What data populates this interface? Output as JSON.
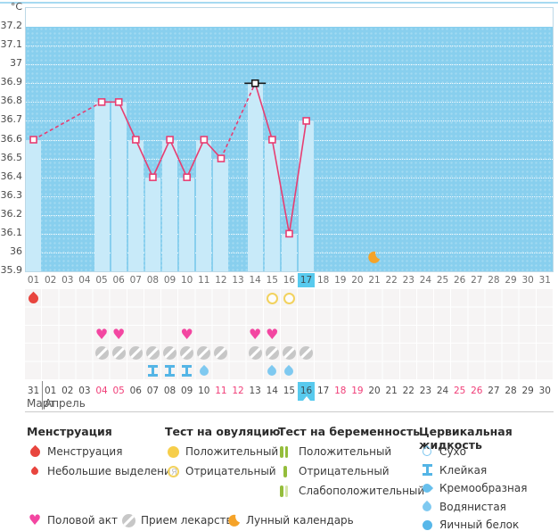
{
  "chart_data": {
    "type": "line",
    "units": "°C",
    "y_ticks": [
      "37.2",
      "37.1",
      "37",
      "36.9",
      "36.8",
      "36.7",
      "36.6",
      "36.5",
      "36.4",
      "36.3",
      "36.2",
      "36.1",
      "36",
      "35.9"
    ],
    "ylim": [
      35.9,
      37.3
    ],
    "x_days": [
      "01",
      "02",
      "03",
      "04",
      "05",
      "06",
      "07",
      "08",
      "09",
      "10",
      "11",
      "12",
      "13",
      "14",
      "15",
      "16",
      "17",
      "18",
      "19",
      "20",
      "21",
      "22",
      "23",
      "24",
      "25",
      "26",
      "27",
      "28",
      "29",
      "30",
      "31"
    ],
    "series": [
      {
        "name": "temperature",
        "points": [
          {
            "day": 1,
            "value": 36.6
          },
          {
            "day": 5,
            "value": 36.8
          },
          {
            "day": 6,
            "value": 36.8
          },
          {
            "day": 7,
            "value": 36.6
          },
          {
            "day": 8,
            "value": 36.4
          },
          {
            "day": 9,
            "value": 36.6
          },
          {
            "day": 10,
            "value": 36.4
          },
          {
            "day": 11,
            "value": 36.6
          },
          {
            "day": 12,
            "value": 36.5
          },
          {
            "day": 14,
            "value": 36.9
          },
          {
            "day": 15,
            "value": 36.6
          },
          {
            "day": 16,
            "value": 36.1
          },
          {
            "day": 17,
            "value": 36.7
          }
        ]
      }
    ],
    "ovulation_marker_day": 14,
    "moon_day": 21,
    "selected_cycle_day": 17,
    "grid": "dotted-horizontal",
    "legend_position": "bottom"
  },
  "events": {
    "rows": [
      {
        "name": "menstruation-and-ovulation-tests",
        "icons": [
          {
            "day": 1,
            "type": "menstruation"
          },
          {
            "day": 15,
            "type": "ovulation-negative"
          },
          {
            "day": 16,
            "type": "ovulation-negative"
          }
        ]
      },
      {
        "name": "pregnancy-tests",
        "icons": []
      },
      {
        "name": "intercourse",
        "icons": [
          {
            "day": 5,
            "type": "heart"
          },
          {
            "day": 6,
            "type": "heart"
          },
          {
            "day": 10,
            "type": "heart"
          },
          {
            "day": 14,
            "type": "heart"
          },
          {
            "day": 15,
            "type": "heart"
          }
        ]
      },
      {
        "name": "medications",
        "icons": [
          {
            "day": 5,
            "type": "pill"
          },
          {
            "day": 6,
            "type": "pill"
          },
          {
            "day": 7,
            "type": "pill"
          },
          {
            "day": 8,
            "type": "pill"
          },
          {
            "day": 9,
            "type": "pill"
          },
          {
            "day": 10,
            "type": "pill"
          },
          {
            "day": 11,
            "type": "pill"
          },
          {
            "day": 12,
            "type": "pill"
          },
          {
            "day": 14,
            "type": "pill"
          },
          {
            "day": 15,
            "type": "pill"
          },
          {
            "day": 16,
            "type": "pill"
          },
          {
            "day": 17,
            "type": "pill"
          }
        ]
      },
      {
        "name": "cervical-fluid",
        "icons": [
          {
            "day": 8,
            "type": "cf-sticky"
          },
          {
            "day": 9,
            "type": "cf-sticky"
          },
          {
            "day": 10,
            "type": "cf-sticky"
          },
          {
            "day": 11,
            "type": "cf-watery"
          },
          {
            "day": 15,
            "type": "cf-watery"
          },
          {
            "day": 16,
            "type": "cf-watery"
          }
        ]
      }
    ]
  },
  "calendar": {
    "month_left": "Март",
    "month_right": "Апрель",
    "selected_date": "16",
    "dates": [
      {
        "label": "31"
      },
      {
        "label": "01"
      },
      {
        "label": "02"
      },
      {
        "label": "03"
      },
      {
        "label": "04",
        "red": true
      },
      {
        "label": "05",
        "red": true
      },
      {
        "label": "06"
      },
      {
        "label": "07"
      },
      {
        "label": "08"
      },
      {
        "label": "09"
      },
      {
        "label": "10"
      },
      {
        "label": "11",
        "red": true
      },
      {
        "label": "12",
        "red": true
      },
      {
        "label": "13"
      },
      {
        "label": "14"
      },
      {
        "label": "15"
      },
      {
        "label": "16",
        "selected": true
      },
      {
        "label": "17"
      },
      {
        "label": "18",
        "red": true
      },
      {
        "label": "19",
        "red": true
      },
      {
        "label": "20"
      },
      {
        "label": "21"
      },
      {
        "label": "22"
      },
      {
        "label": "23"
      },
      {
        "label": "24"
      },
      {
        "label": "25",
        "red": true
      },
      {
        "label": "26",
        "red": true
      },
      {
        "label": "27"
      },
      {
        "label": "28"
      },
      {
        "label": "29"
      },
      {
        "label": "30"
      }
    ]
  },
  "legend": {
    "groups": [
      {
        "title": "Менструация",
        "items": [
          {
            "icon": "menstruation",
            "label": "Менструация"
          },
          {
            "icon": "spotting",
            "label": "Небольшие выделения"
          }
        ]
      },
      {
        "title": "Тест на овуляцию",
        "items": [
          {
            "icon": "ovulation-positive",
            "label": "Положительный"
          },
          {
            "icon": "ovulation-negative",
            "label": "Отрицательный"
          }
        ]
      },
      {
        "title": "Тест на беременность",
        "items": [
          {
            "icon": "pregnancy-positive",
            "label": "Положительный"
          },
          {
            "icon": "pregnancy-negative",
            "label": "Отрицательный"
          },
          {
            "icon": "pregnancy-weak",
            "label": "Слабоположительный"
          }
        ]
      },
      {
        "title": "Цервикальная жидкость",
        "items": [
          {
            "icon": "cf-dry",
            "label": "Сухо"
          },
          {
            "icon": "cf-sticky",
            "label": "Клейкая"
          },
          {
            "icon": "cf-creamy",
            "label": "Кремообразная"
          },
          {
            "icon": "cf-watery",
            "label": "Водянистая"
          },
          {
            "icon": "cf-eggwhite",
            "label": "Яичный белок"
          }
        ]
      }
    ],
    "bottom_items": [
      {
        "icon": "heart",
        "label": "Половой акт"
      },
      {
        "icon": "pill",
        "label": "Прием лекарств"
      },
      {
        "icon": "moon",
        "label": "Лунный календарь"
      }
    ]
  },
  "colors": {
    "plot_bg": "#88CFEE",
    "bar_fill": "#C8EAF9",
    "line_pink": "#E73E72",
    "highlight_blue": "#58CAEE",
    "heart_pink": "#F346A1",
    "menses_red": "#E8453E",
    "ovulation_yellow": "#F6CE4B",
    "pregnancy_green": "#94BD3B",
    "cervical_blue": "#57B7E9",
    "moon_orange": "#F5A329",
    "weekend_red": "#F03E78"
  }
}
